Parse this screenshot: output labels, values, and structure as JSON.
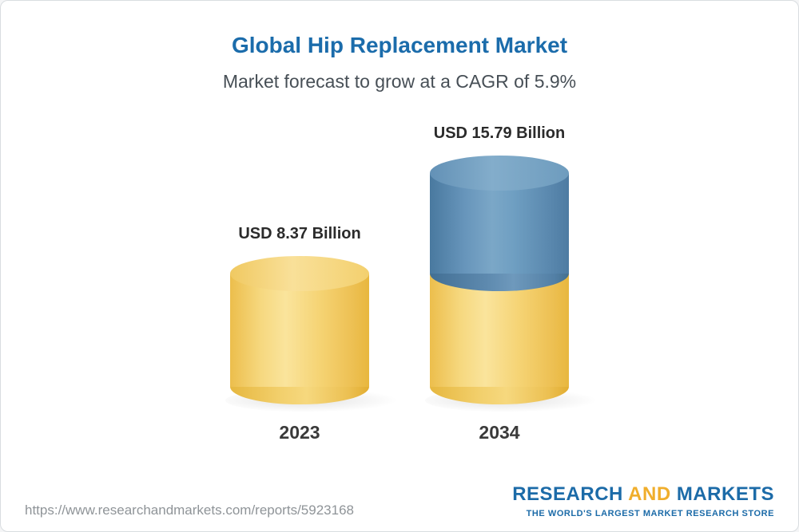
{
  "chart_data": {
    "type": "bar",
    "subtype": "3d-cylinder",
    "title": "Global Hip Replacement Market",
    "subtitle": "Market forecast to grow at a CAGR of 5.9%",
    "categories": [
      "2023",
      "2034"
    ],
    "values": [
      8.37,
      15.79
    ],
    "value_labels": [
      "USD 8.37 Billion",
      "USD 15.79 Billion"
    ],
    "unit": "USD Billion",
    "cagr_pct": 5.9,
    "grid": false,
    "axes": "none",
    "legend": "none",
    "colors": {
      "base_segment": "#F2CA5F",
      "growth_segment": "#5E90B7",
      "title_text": "#1B6CAB",
      "subtitle_text": "#474F56"
    },
    "layout_note": "Second cylinder stacked: gold lower segment equals 2023 value, blue upper segment is growth to 15.79"
  },
  "footer": {
    "url": "https://www.researchandmarkets.com/reports/5923168",
    "brand": {
      "research": "RESEARCH",
      "and": "AND",
      "markets": "MARKETS",
      "tagline": "THE WORLD'S LARGEST MARKET RESEARCH STORE",
      "blue": "#1C6BA8",
      "gold": "#F0AE2C"
    }
  }
}
